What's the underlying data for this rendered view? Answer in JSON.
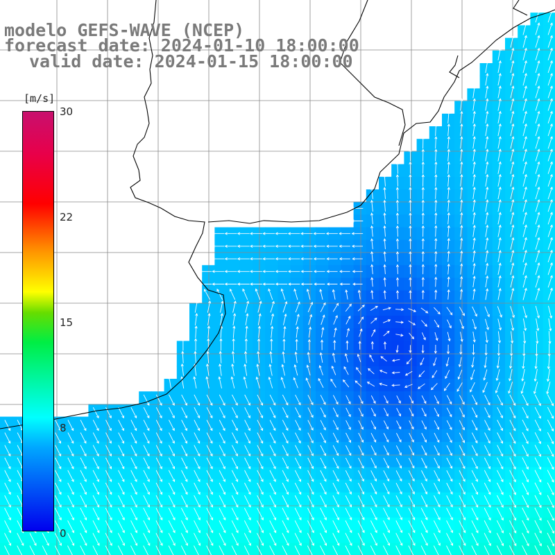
{
  "title": {
    "line1": "modelo GEFS-WAVE (NCEP)",
    "line2": "forecast date: 2024-01-10 18:00:00",
    "line3": "valid date: 2024-01-15 18:00:00"
  },
  "colorbar": {
    "unit_label": "[m/s]",
    "ticks": [
      "30",
      "22",
      "15",
      "8",
      "0"
    ],
    "min": 0,
    "max": 30
  },
  "colors": {
    "land": "#ffffff",
    "coastline": "#000000",
    "grid": "#888888",
    "arrows": "#ffffff",
    "title_text": "#7a7a7a"
  }
}
